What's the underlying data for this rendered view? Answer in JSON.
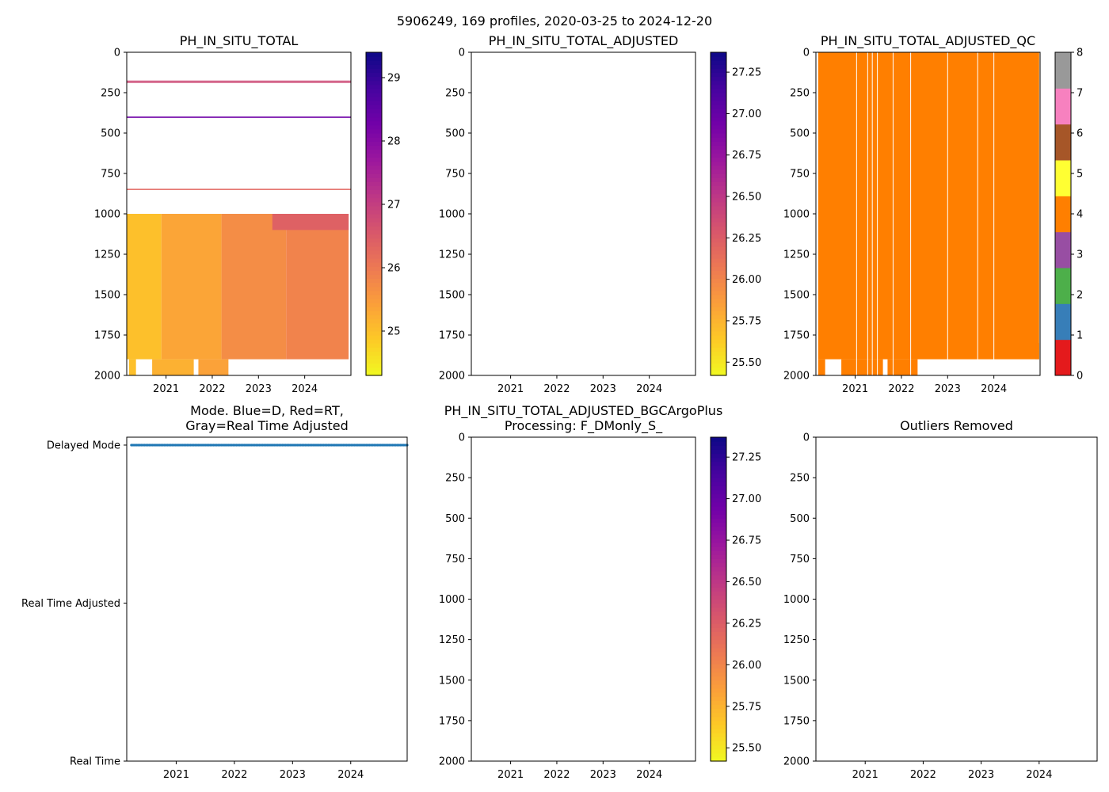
{
  "figure_title": "5906249, 169 profiles, 2020-03-25 to 2024-12-20",
  "colors": {
    "plasma_r": [
      "#f0f921",
      "#fdca26",
      "#fb9f3a",
      "#ed7953",
      "#d8576b",
      "#bd3786",
      "#9c179e",
      "#7201a8",
      "#46039f",
      "#0d0887"
    ],
    "qc_cmap": [
      "#e41a1c",
      "#377eb8",
      "#4daf4a",
      "#984ea3",
      "#ff7f00",
      "#ffff33",
      "#a65628",
      "#f781bf",
      "#999999"
    ],
    "delayed_mode": "#1f77b4"
  },
  "chart_data": [
    {
      "id": "p1",
      "type": "heatmap",
      "title": "PH_IN_SITU_TOTAL",
      "xlim": [
        2020.15,
        2025.0
      ],
      "ylim": [
        2000,
        0
      ],
      "y_inverted": true,
      "x_ticks": [
        {
          "v": 2021,
          "label": "2021"
        },
        {
          "v": 2022,
          "label": "2022"
        },
        {
          "v": 2023,
          "label": "2023"
        },
        {
          "v": 2024,
          "label": "2024"
        }
      ],
      "y_ticks": [
        {
          "v": 0,
          "label": "0"
        },
        {
          "v": 250,
          "label": "250"
        },
        {
          "v": 500,
          "label": "500"
        },
        {
          "v": 750,
          "label": "750"
        },
        {
          "v": 1000,
          "label": "1000"
        },
        {
          "v": 1250,
          "label": "1250"
        },
        {
          "v": 1500,
          "label": "1500"
        },
        {
          "v": 1750,
          "label": "1750"
        },
        {
          "v": 2000,
          "label": "2000"
        }
      ],
      "colorbar": {
        "min": 24.3,
        "max": 29.4,
        "cmap": "plasma_r",
        "ticks": [
          {
            "v": 25,
            "label": "25"
          },
          {
            "v": 26,
            "label": "26"
          },
          {
            "v": 27,
            "label": "27"
          },
          {
            "v": 28,
            "label": "28"
          },
          {
            "v": 29,
            "label": "29"
          }
        ]
      },
      "bands": [
        {
          "x0": 2020.15,
          "x1": 2025.0,
          "d0": 175,
          "d1": 190,
          "value": 26.8,
          "dashed": true
        },
        {
          "x0": 2020.15,
          "x1": 2025.0,
          "d0": 398,
          "d1": 406,
          "value": 28.3
        },
        {
          "x0": 2020.15,
          "x1": 2025.0,
          "d0": 845,
          "d1": 852,
          "value": 26.3
        },
        {
          "x0": 2020.15,
          "x1": 2020.9,
          "d0": 1000,
          "d1": 1900,
          "value": 25.0
        },
        {
          "x0": 2020.9,
          "x1": 2022.2,
          "d0": 1000,
          "d1": 1900,
          "value": 25.35
        },
        {
          "x0": 2022.2,
          "x1": 2023.6,
          "d0": 1000,
          "d1": 1900,
          "value": 25.7
        },
        {
          "x0": 2023.6,
          "x1": 2024.95,
          "d0": 1000,
          "d1": 1900,
          "value": 25.85
        },
        {
          "x0": 2023.3,
          "x1": 2024.95,
          "d0": 1000,
          "d1": 1100,
          "value": 26.4
        },
        {
          "x0": 2020.2,
          "x1": 2020.35,
          "d0": 1900,
          "d1": 2000,
          "value": 25.0
        },
        {
          "x0": 2020.7,
          "x1": 2021.6,
          "d0": 1900,
          "d1": 2000,
          "value": 25.2
        },
        {
          "x0": 2021.7,
          "x1": 2022.35,
          "d0": 1900,
          "d1": 2000,
          "value": 25.4
        }
      ]
    },
    {
      "id": "p2",
      "type": "heatmap",
      "title": "PH_IN_SITU_TOTAL_ADJUSTED",
      "xlim": [
        2020.15,
        2025.0
      ],
      "ylim": [
        2000,
        0
      ],
      "y_inverted": true,
      "x_ticks": [
        {
          "v": 2021,
          "label": "2021"
        },
        {
          "v": 2022,
          "label": "2022"
        },
        {
          "v": 2023,
          "label": "2023"
        },
        {
          "v": 2024,
          "label": "2024"
        }
      ],
      "y_ticks": [
        {
          "v": 0,
          "label": "0"
        },
        {
          "v": 250,
          "label": "250"
        },
        {
          "v": 500,
          "label": "500"
        },
        {
          "v": 750,
          "label": "750"
        },
        {
          "v": 1000,
          "label": "1000"
        },
        {
          "v": 1250,
          "label": "1250"
        },
        {
          "v": 1500,
          "label": "1500"
        },
        {
          "v": 1750,
          "label": "1750"
        },
        {
          "v": 2000,
          "label": "2000"
        }
      ],
      "colorbar": {
        "min": 25.42,
        "max": 27.37,
        "cmap": "plasma_r",
        "ticks": [
          {
            "v": 25.5,
            "label": "25.50"
          },
          {
            "v": 25.75,
            "label": "25.75"
          },
          {
            "v": 26.0,
            "label": "26.00"
          },
          {
            "v": 26.25,
            "label": "26.25"
          },
          {
            "v": 26.5,
            "label": "26.50"
          },
          {
            "v": 26.75,
            "label": "26.75"
          },
          {
            "v": 27.0,
            "label": "27.00"
          },
          {
            "v": 27.25,
            "label": "27.25"
          }
        ]
      },
      "bands": []
    },
    {
      "id": "p3",
      "type": "heatmap",
      "title": "PH_IN_SITU_TOTAL_ADJUSTED_QC",
      "xlim": [
        2020.15,
        2025.0
      ],
      "ylim": [
        2000,
        0
      ],
      "y_inverted": true,
      "x_ticks": [
        {
          "v": 2021,
          "label": "2021"
        },
        {
          "v": 2022,
          "label": "2022"
        },
        {
          "v": 2023,
          "label": "2023"
        },
        {
          "v": 2024,
          "label": "2024"
        }
      ],
      "y_ticks": [
        {
          "v": 0,
          "label": "0"
        },
        {
          "v": 250,
          "label": "250"
        },
        {
          "v": 500,
          "label": "500"
        },
        {
          "v": 750,
          "label": "750"
        },
        {
          "v": 1000,
          "label": "1000"
        },
        {
          "v": 1250,
          "label": "1250"
        },
        {
          "v": 1500,
          "label": "1500"
        },
        {
          "v": 1750,
          "label": "1750"
        },
        {
          "v": 2000,
          "label": "2000"
        }
      ],
      "colorbar": {
        "min": 0,
        "max": 8,
        "cmap": "qc_cmap",
        "discrete": true,
        "ticks": [
          {
            "v": 0,
            "label": "0"
          },
          {
            "v": 1,
            "label": "1"
          },
          {
            "v": 2,
            "label": "2"
          },
          {
            "v": 3,
            "label": "3"
          },
          {
            "v": 4,
            "label": "4"
          },
          {
            "v": 5,
            "label": "5"
          },
          {
            "v": 6,
            "label": "6"
          },
          {
            "v": 7,
            "label": "7"
          },
          {
            "v": 8,
            "label": "8"
          }
        ]
      },
      "qc_value": 4,
      "bands": [
        {
          "x0": 2020.2,
          "x1": 2024.98,
          "d0": 0,
          "d1": 1900,
          "value": 4
        },
        {
          "x0": 2024.9,
          "x1": 2024.98,
          "d0": 1900,
          "d1": 1800,
          "value": 4
        },
        {
          "x0": 2020.2,
          "x1": 2020.35,
          "d0": 1900,
          "d1": 2000,
          "value": 4
        },
        {
          "x0": 2020.7,
          "x1": 2021.6,
          "d0": 1900,
          "d1": 2000,
          "value": 4
        },
        {
          "x0": 2021.7,
          "x1": 2022.35,
          "d0": 1900,
          "d1": 2000,
          "value": 4
        }
      ],
      "profile_gaps": [
        2021.03,
        2021.27,
        2021.37,
        2021.48,
        2021.82,
        2022.2,
        2023.0,
        2023.65,
        2024.0
      ]
    },
    {
      "id": "p4",
      "type": "scatter",
      "title": "Mode. Blue=D, Red=RT,\nGray=Real Time Adjusted",
      "xlim": [
        2020.15,
        2024.97
      ],
      "x_ticks": [
        {
          "v": 2021,
          "label": "2021"
        },
        {
          "v": 2022,
          "label": "2022"
        },
        {
          "v": 2023,
          "label": "2023"
        },
        {
          "v": 2024,
          "label": "2024"
        }
      ],
      "y_categories": [
        {
          "v": 2,
          "label": "Delayed Mode"
        },
        {
          "v": 1,
          "label": "Real Time Adjusted"
        },
        {
          "v": 0,
          "label": "Real Time"
        }
      ],
      "ylim": [
        0,
        2.05
      ],
      "series": [
        {
          "name": "D",
          "y": 2,
          "x_start": 2020.23,
          "x_end": 2024.97,
          "count": 169
        }
      ]
    },
    {
      "id": "p5",
      "type": "heatmap",
      "title": "PH_IN_SITU_TOTAL_ADJUSTED_BGCArgoPlus\nProcessing: F_DMonly_S_",
      "xlim": [
        2020.15,
        2025.0
      ],
      "ylim": [
        2000,
        0
      ],
      "y_inverted": true,
      "x_ticks": [
        {
          "v": 2021,
          "label": "2021"
        },
        {
          "v": 2022,
          "label": "2022"
        },
        {
          "v": 2023,
          "label": "2023"
        },
        {
          "v": 2024,
          "label": "2024"
        }
      ],
      "y_ticks": [
        {
          "v": 0,
          "label": "0"
        },
        {
          "v": 250,
          "label": "250"
        },
        {
          "v": 500,
          "label": "500"
        },
        {
          "v": 750,
          "label": "750"
        },
        {
          "v": 1000,
          "label": "1000"
        },
        {
          "v": 1250,
          "label": "1250"
        },
        {
          "v": 1500,
          "label": "1500"
        },
        {
          "v": 1750,
          "label": "1750"
        },
        {
          "v": 2000,
          "label": "2000"
        }
      ],
      "colorbar": {
        "min": 25.42,
        "max": 27.37,
        "cmap": "plasma_r",
        "ticks": [
          {
            "v": 25.5,
            "label": "25.50"
          },
          {
            "v": 25.75,
            "label": "25.75"
          },
          {
            "v": 26.0,
            "label": "26.00"
          },
          {
            "v": 26.25,
            "label": "26.25"
          },
          {
            "v": 26.5,
            "label": "26.50"
          },
          {
            "v": 26.75,
            "label": "26.75"
          },
          {
            "v": 27.0,
            "label": "27.00"
          },
          {
            "v": 27.25,
            "label": "27.25"
          }
        ]
      },
      "bands": []
    },
    {
      "id": "p6",
      "type": "heatmap",
      "title": "Outliers Removed",
      "xlim": [
        2020.15,
        2025.0
      ],
      "ylim": [
        2000,
        0
      ],
      "y_inverted": true,
      "x_ticks": [
        {
          "v": 2021,
          "label": "2021"
        },
        {
          "v": 2022,
          "label": "2022"
        },
        {
          "v": 2023,
          "label": "2023"
        },
        {
          "v": 2024,
          "label": "2024"
        }
      ],
      "y_ticks": [
        {
          "v": 0,
          "label": "0"
        },
        {
          "v": 250,
          "label": "250"
        },
        {
          "v": 500,
          "label": "500"
        },
        {
          "v": 750,
          "label": "750"
        },
        {
          "v": 1000,
          "label": "1000"
        },
        {
          "v": 1250,
          "label": "1250"
        },
        {
          "v": 1500,
          "label": "1500"
        },
        {
          "v": 1750,
          "label": "1750"
        },
        {
          "v": 2000,
          "label": "2000"
        }
      ],
      "bands": []
    }
  ]
}
